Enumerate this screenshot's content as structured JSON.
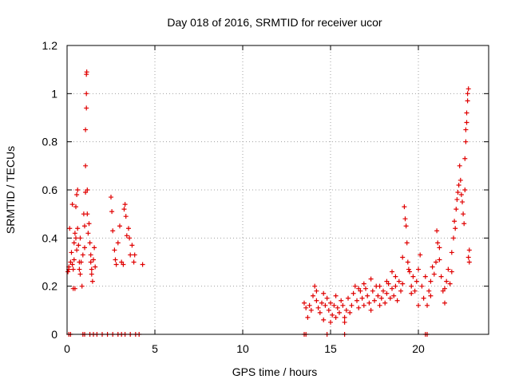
{
  "chart_data": {
    "type": "scatter",
    "title": "Day 018 of 2016, SRMTID for receiver ucor",
    "xlabel": "GPS time / hours",
    "ylabel": "SRMTID / TECUs",
    "xlim": [
      0,
      24
    ],
    "ylim": [
      0,
      1.2
    ],
    "x_ticks": [
      0,
      5,
      10,
      15,
      20
    ],
    "y_ticks": [
      0,
      0.2,
      0.4,
      0.6,
      0.8,
      1,
      1.2
    ],
    "x_tick_labels": [
      "0",
      "5",
      "10",
      "15",
      "20"
    ],
    "y_tick_labels": [
      "0",
      "0.2",
      "0.4",
      "0.6",
      "0.8",
      "1",
      "1.2"
    ],
    "grid": true,
    "marker": "plus",
    "series": [
      {
        "name": "SRMTID",
        "color": "#e00000",
        "points": [
          [
            0.1,
            0.27
          ],
          [
            0.1,
            0.28
          ],
          [
            0.15,
            0.44
          ],
          [
            0.2,
            0.3
          ],
          [
            0.25,
            0.34
          ],
          [
            0.3,
            0.54
          ],
          [
            0.3,
            0.29
          ],
          [
            0.35,
            0.27
          ],
          [
            0.35,
            0.19
          ],
          [
            0.4,
            0.38
          ],
          [
            0.4,
            0.31
          ],
          [
            0.45,
            0.42
          ],
          [
            0.45,
            0.19
          ],
          [
            0.5,
            0.4
          ],
          [
            0.5,
            0.53
          ],
          [
            0.55,
            0.58
          ],
          [
            0.55,
            0.35
          ],
          [
            0.6,
            0.6
          ],
          [
            0.6,
            0.44
          ],
          [
            0.65,
            0.37
          ],
          [
            0.7,
            0.3
          ],
          [
            0.7,
            0.27
          ],
          [
            0.75,
            0.25
          ],
          [
            0.75,
            0.4
          ],
          [
            0.8,
            0.3
          ],
          [
            0.85,
            0.2
          ],
          [
            0.9,
            0.33
          ],
          [
            0.95,
            0.5
          ],
          [
            1.0,
            0.45
          ],
          [
            1.0,
            0.36
          ],
          [
            1.05,
            0.59
          ],
          [
            1.05,
            0.7
          ],
          [
            1.05,
            0.85
          ],
          [
            1.1,
            0.94
          ],
          [
            1.1,
            1.0
          ],
          [
            1.1,
            1.08
          ],
          [
            1.12,
            1.09
          ],
          [
            1.15,
            0.6
          ],
          [
            1.15,
            0.5
          ],
          [
            1.2,
            0.42
          ],
          [
            1.25,
            0.46
          ],
          [
            1.3,
            0.38
          ],
          [
            1.35,
            0.33
          ],
          [
            1.35,
            0.3
          ],
          [
            1.4,
            0.25
          ],
          [
            1.4,
            0.27
          ],
          [
            1.45,
            0.22
          ],
          [
            1.5,
            0.31
          ],
          [
            1.55,
            0.36
          ],
          [
            1.6,
            0.28
          ],
          [
            2.5,
            0.57
          ],
          [
            2.55,
            0.51
          ],
          [
            2.6,
            0.43
          ],
          [
            2.7,
            0.35
          ],
          [
            2.75,
            0.31
          ],
          [
            2.8,
            0.29
          ],
          [
            2.9,
            0.38
          ],
          [
            3.0,
            0.45
          ],
          [
            3.1,
            0.3
          ],
          [
            3.2,
            0.29
          ],
          [
            3.25,
            0.52
          ],
          [
            3.3,
            0.54
          ],
          [
            3.35,
            0.49
          ],
          [
            3.4,
            0.41
          ],
          [
            3.5,
            0.44
          ],
          [
            3.55,
            0.4
          ],
          [
            3.6,
            0.33
          ],
          [
            3.7,
            0.37
          ],
          [
            3.8,
            0.3
          ],
          [
            3.85,
            0.33
          ],
          [
            4.3,
            0.29
          ],
          [
            0.05,
            0.26
          ],
          [
            13.5,
            0.13
          ],
          [
            13.6,
            0.11
          ],
          [
            13.7,
            0.07
          ],
          [
            13.8,
            0.12
          ],
          [
            13.9,
            0.1
          ],
          [
            14.0,
            0.16
          ],
          [
            14.1,
            0.2
          ],
          [
            14.2,
            0.14
          ],
          [
            14.3,
            0.11
          ],
          [
            14.4,
            0.09
          ],
          [
            14.5,
            0.13
          ],
          [
            14.6,
            0.17
          ],
          [
            14.7,
            0.12
          ],
          [
            14.8,
            0.15
          ],
          [
            14.9,
            0.1
          ],
          [
            15.0,
            0.13
          ],
          [
            15.1,
            0.08
          ],
          [
            15.2,
            0.12
          ],
          [
            15.3,
            0.16
          ],
          [
            15.4,
            0.11
          ],
          [
            15.5,
            0.09
          ],
          [
            15.6,
            0.14
          ],
          [
            15.7,
            0.12
          ],
          [
            15.8,
            0.07
          ],
          [
            15.9,
            0.1
          ],
          [
            16.0,
            0.15
          ],
          [
            16.1,
            0.09
          ],
          [
            16.2,
            0.12
          ],
          [
            16.3,
            0.17
          ],
          [
            16.4,
            0.2
          ],
          [
            16.5,
            0.14
          ],
          [
            16.6,
            0.11
          ],
          [
            16.7,
            0.18
          ],
          [
            16.8,
            0.15
          ],
          [
            16.9,
            0.12
          ],
          [
            17.0,
            0.19
          ],
          [
            17.1,
            0.16
          ],
          [
            17.2,
            0.13
          ],
          [
            17.3,
            0.1
          ],
          [
            17.4,
            0.18
          ],
          [
            17.5,
            0.14
          ],
          [
            17.6,
            0.2
          ],
          [
            17.7,
            0.16
          ],
          [
            17.8,
            0.12
          ],
          [
            17.9,
            0.15
          ],
          [
            18.0,
            0.18
          ],
          [
            18.1,
            0.13
          ],
          [
            18.2,
            0.17
          ],
          [
            18.3,
            0.21
          ],
          [
            18.4,
            0.15
          ],
          [
            18.5,
            0.19
          ],
          [
            18.6,
            0.16
          ],
          [
            18.7,
            0.2
          ],
          [
            18.8,
            0.14
          ],
          [
            18.9,
            0.22
          ],
          [
            19.0,
            0.18
          ],
          [
            19.1,
            0.21
          ],
          [
            19.2,
            0.53
          ],
          [
            19.25,
            0.48
          ],
          [
            19.3,
            0.45
          ],
          [
            19.35,
            0.38
          ],
          [
            19.4,
            0.3
          ],
          [
            19.5,
            0.26
          ],
          [
            19.6,
            0.2
          ],
          [
            19.7,
            0.24
          ],
          [
            19.8,
            0.18
          ],
          [
            19.9,
            0.22
          ],
          [
            20.0,
            0.27
          ],
          [
            20.1,
            0.33
          ],
          [
            20.2,
            0.2
          ],
          [
            20.3,
            0.15
          ],
          [
            20.5,
            0.12
          ],
          [
            20.6,
            0.18
          ],
          [
            20.7,
            0.22
          ],
          [
            20.8,
            0.28
          ],
          [
            20.9,
            0.25
          ],
          [
            21.0,
            0.3
          ],
          [
            21.05,
            0.43
          ],
          [
            21.1,
            0.38
          ],
          [
            21.2,
            0.31
          ],
          [
            21.3,
            0.24
          ],
          [
            21.4,
            0.18
          ],
          [
            21.5,
            0.13
          ],
          [
            21.6,
            0.22
          ],
          [
            21.7,
            0.27
          ],
          [
            21.8,
            0.21
          ],
          [
            21.9,
            0.34
          ],
          [
            22.0,
            0.4
          ],
          [
            22.05,
            0.47
          ],
          [
            22.1,
            0.44
          ],
          [
            22.15,
            0.52
          ],
          [
            22.2,
            0.56
          ],
          [
            22.25,
            0.59
          ],
          [
            22.3,
            0.62
          ],
          [
            22.35,
            0.7
          ],
          [
            22.4,
            0.64
          ],
          [
            22.45,
            0.58
          ],
          [
            22.5,
            0.55
          ],
          [
            22.55,
            0.5
          ],
          [
            22.6,
            0.46
          ],
          [
            22.65,
            0.6
          ],
          [
            22.65,
            0.73
          ],
          [
            22.7,
            0.8
          ],
          [
            22.7,
            0.85
          ],
          [
            22.75,
            0.88
          ],
          [
            22.75,
            0.92
          ],
          [
            22.8,
            0.97
          ],
          [
            22.8,
            1.0
          ],
          [
            22.85,
            1.02
          ],
          [
            22.85,
            0.32
          ],
          [
            22.9,
            0.3
          ],
          [
            22.9,
            0.35
          ],
          [
            14.2,
            0.18
          ],
          [
            14.6,
            0.06
          ],
          [
            15.0,
            0.05
          ],
          [
            15.3,
            0.07
          ],
          [
            15.8,
            0.05
          ],
          [
            16.6,
            0.19
          ],
          [
            16.9,
            0.21
          ],
          [
            17.3,
            0.23
          ],
          [
            17.8,
            0.2
          ],
          [
            18.2,
            0.22
          ],
          [
            18.5,
            0.26
          ],
          [
            18.7,
            0.24
          ],
          [
            19.1,
            0.32
          ],
          [
            19.45,
            0.27
          ],
          [
            19.6,
            0.17
          ],
          [
            20.0,
            0.12
          ],
          [
            20.4,
            0.24
          ],
          [
            20.7,
            0.16
          ],
          [
            21.2,
            0.36
          ],
          [
            21.5,
            0.19
          ],
          [
            21.9,
            0.26
          ],
          [
            0.1,
            0.0
          ],
          [
            0.2,
            0.0
          ],
          [
            0.9,
            0.0
          ],
          [
            1.0,
            0.0
          ],
          [
            1.3,
            0.0
          ],
          [
            1.5,
            0.0
          ],
          [
            1.7,
            0.0
          ],
          [
            2.0,
            0.0
          ],
          [
            2.3,
            0.0
          ],
          [
            2.6,
            0.0
          ],
          [
            2.9,
            0.0
          ],
          [
            3.1,
            0.0
          ],
          [
            3.3,
            0.0
          ],
          [
            3.6,
            0.0
          ],
          [
            3.9,
            0.0
          ],
          [
            4.1,
            0.0
          ],
          [
            13.5,
            0.0
          ],
          [
            13.6,
            0.0
          ],
          [
            14.8,
            0.0
          ],
          [
            15.8,
            0.0
          ],
          [
            20.4,
            0.0
          ],
          [
            20.5,
            0.0
          ]
        ]
      }
    ]
  }
}
